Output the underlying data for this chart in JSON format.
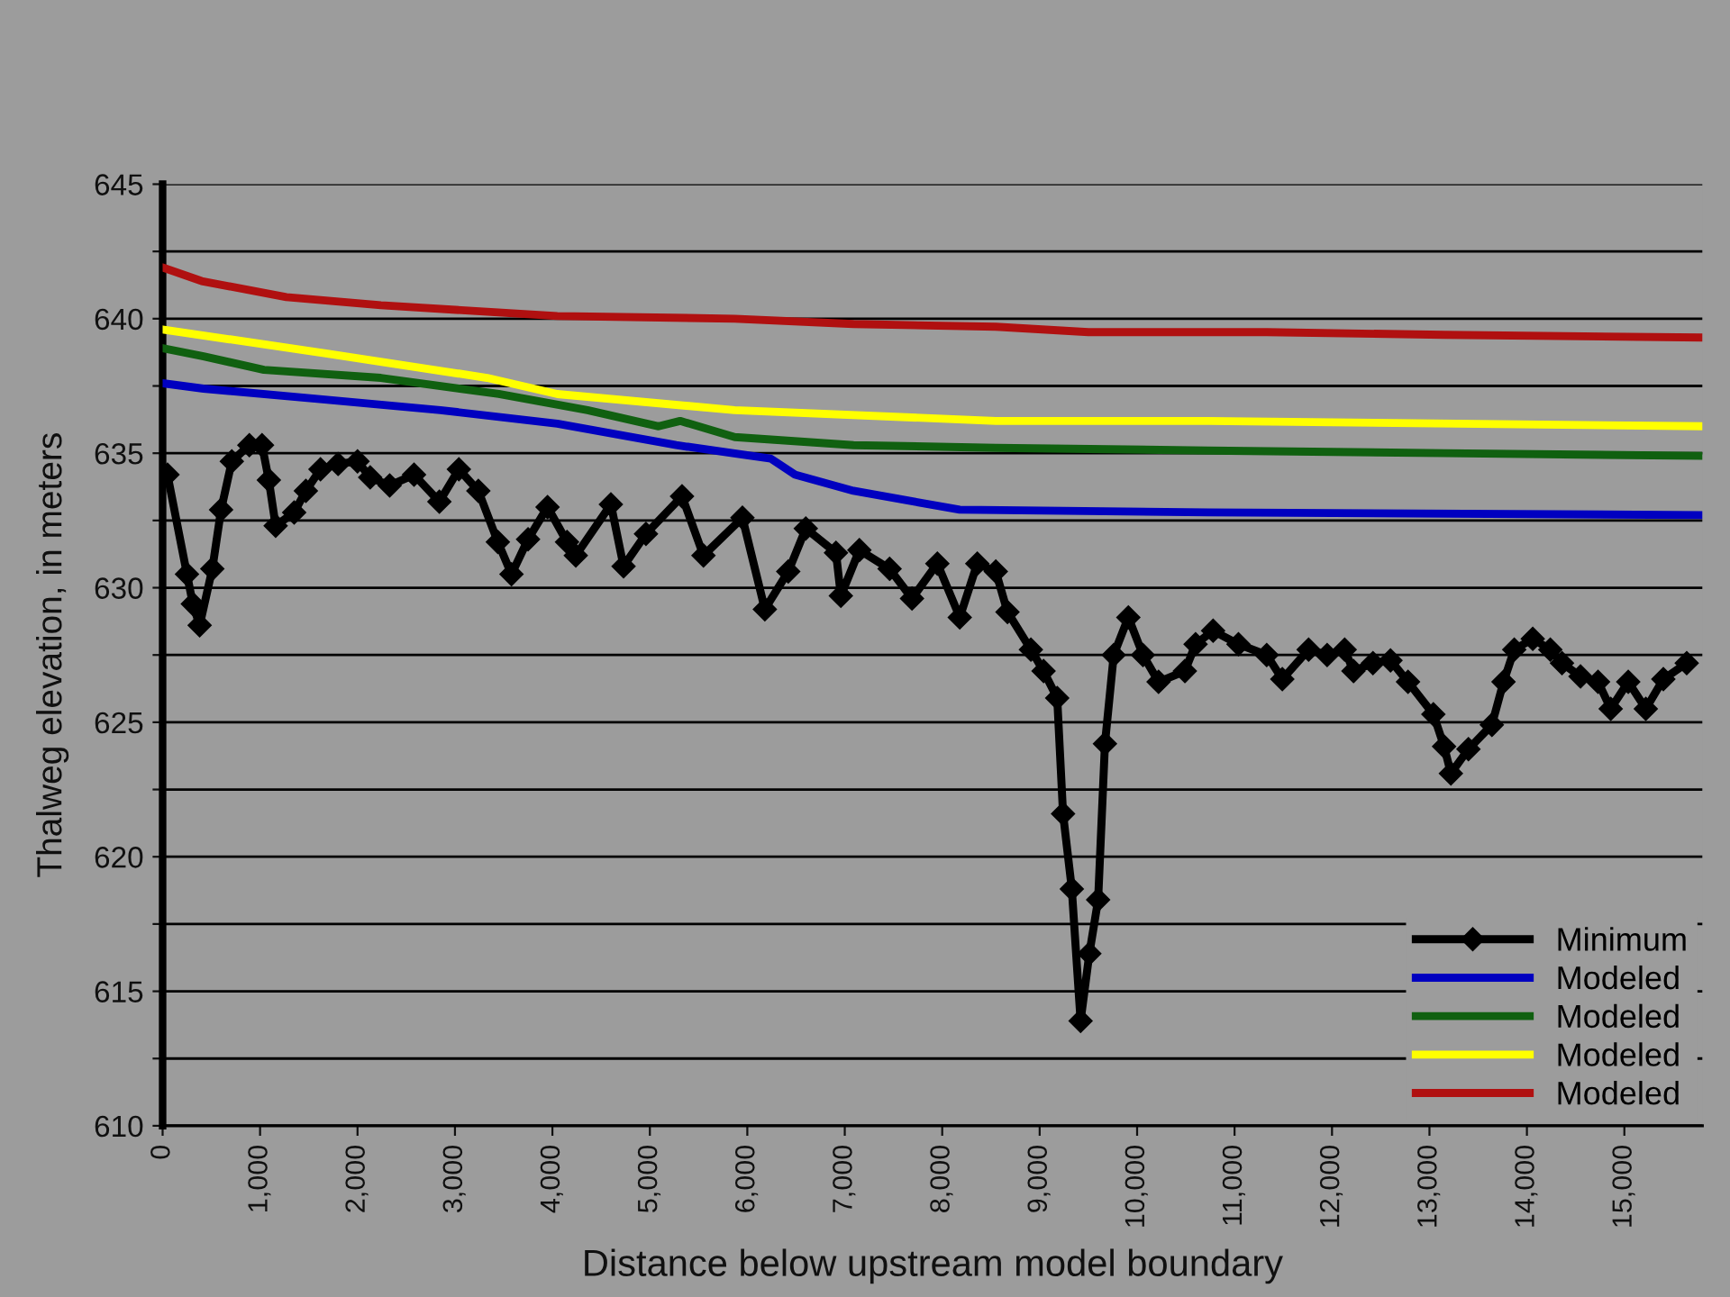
{
  "chart_data": {
    "type": "line",
    "xlabel": "Distance below upstream model boundary",
    "ylabel": "Thalweg elevation, in meters",
    "xlim": [
      0,
      15800
    ],
    "ylim": [
      610,
      645
    ],
    "xticks": [
      0,
      {
        "value": 1000,
        "label": "1,000"
      },
      {
        "value": 2000,
        "label": "2,000"
      },
      {
        "value": 3000,
        "label": "3,000"
      },
      {
        "value": 4000,
        "label": "4,000"
      },
      {
        "value": 5000,
        "label": "5,000"
      },
      {
        "value": 6000,
        "label": "6,000"
      },
      {
        "value": 7000,
        "label": "7,000"
      },
      {
        "value": 8000,
        "label": "8,000"
      },
      {
        "value": 9000,
        "label": "9,000"
      },
      {
        "value": 10000,
        "label": "10,000"
      },
      {
        "value": 11000,
        "label": "11,000"
      },
      {
        "value": 12000,
        "label": "12,000"
      },
      {
        "value": 13000,
        "label": "13,000"
      },
      {
        "value": 14000,
        "label": "14,000"
      },
      {
        "value": 15000,
        "label": "15,000"
      }
    ],
    "yticks": [
      610,
      {
        "value": 612.5,
        "label": null
      },
      615,
      {
        "value": 617.5,
        "label": null
      },
      620,
      {
        "value": 622.5,
        "label": null
      },
      625,
      {
        "value": 627.5,
        "label": null
      },
      630,
      {
        "value": 632.5,
        "label": null
      },
      635,
      {
        "value": 637.5,
        "label": null
      },
      640,
      {
        "value": 642.5,
        "label": null
      },
      645
    ],
    "grid": "y",
    "legend": "bottom right",
    "series": [
      {
        "name": "Minimum",
        "color": "#000000",
        "marker": "diamond",
        "x": [
          50,
          250,
          310,
          380,
          510,
          600,
          710,
          890,
          1020,
          1090,
          1160,
          1350,
          1470,
          1620,
          1800,
          2000,
          2130,
          2330,
          2580,
          2840,
          3040,
          3240,
          3440,
          3580,
          3750,
          3950,
          4150,
          4240,
          4600,
          4730,
          4960,
          5330,
          5550,
          5950,
          6180,
          6420,
          6600,
          6910,
          6960,
          7150,
          7460,
          7690,
          7950,
          8180,
          8360,
          8550,
          8670,
          8910,
          9040,
          9180,
          9240,
          9330,
          9420,
          9510,
          9600,
          9670,
          9760,
          9910,
          10060,
          10220,
          10490,
          10600,
          10780,
          11040,
          11330,
          11490,
          11760,
          11950,
          12130,
          12220,
          12420,
          12600,
          12780,
          13040,
          13150,
          13220,
          13400,
          13640,
          13760,
          13870,
          14060,
          14240,
          14360,
          14550,
          14730,
          14860,
          15040,
          15220,
          15400,
          15640
        ],
        "values": [
          634.2,
          630.5,
          629.4,
          628.6,
          630.7,
          632.9,
          634.7,
          635.3,
          635.3,
          634.0,
          632.3,
          632.8,
          633.6,
          634.4,
          634.6,
          634.7,
          634.1,
          633.8,
          634.2,
          633.2,
          634.4,
          633.6,
          631.7,
          630.5,
          631.8,
          633.0,
          631.7,
          631.2,
          633.1,
          630.8,
          632.0,
          633.4,
          631.2,
          632.6,
          629.2,
          630.6,
          632.2,
          631.3,
          629.7,
          631.4,
          630.7,
          629.6,
          630.9,
          628.9,
          630.9,
          630.6,
          629.1,
          627.7,
          626.9,
          625.9,
          621.6,
          618.8,
          613.9,
          616.4,
          618.4,
          624.2,
          627.5,
          628.9,
          627.5,
          626.5,
          626.9,
          627.9,
          628.4,
          627.9,
          627.5,
          626.6,
          627.7,
          627.5,
          627.7,
          626.9,
          627.2,
          627.3,
          626.5,
          625.3,
          624.1,
          623.1,
          624.0,
          624.9,
          626.5,
          627.7,
          628.1,
          627.7,
          627.2,
          626.7,
          626.5,
          625.5,
          626.5,
          625.5,
          626.6,
          627.2
        ]
      },
      {
        "name": "Modeled",
        "color": "#0000c0",
        "x": [
          0,
          420,
          1640,
          2850,
          4050,
          5270,
          6240,
          6490,
          7090,
          8180,
          10730,
          15800
        ],
        "values": [
          637.6,
          637.4,
          637.0,
          636.6,
          636.1,
          635.3,
          634.8,
          634.2,
          633.6,
          632.9,
          632.8,
          632.7
        ]
      },
      {
        "name": "Modeled",
        "color": "#106010",
        "x": [
          0,
          420,
          1040,
          2240,
          3450,
          4360,
          5090,
          5310,
          5870,
          7090,
          8550,
          10730,
          13150,
          15800
        ],
        "values": [
          638.9,
          638.6,
          638.1,
          637.8,
          637.2,
          636.6,
          636.0,
          636.2,
          635.6,
          635.3,
          635.2,
          635.1,
          635.0,
          634.9
        ]
      },
      {
        "name": "Modeled",
        "color": "#ffff00",
        "x": [
          0,
          1690,
          3330,
          4050,
          5870,
          8550,
          10730,
          15800
        ],
        "values": [
          639.6,
          638.7,
          637.8,
          637.2,
          636.6,
          636.2,
          636.2,
          636.0
        ]
      },
      {
        "name": "Modeled",
        "color": "#b01010",
        "x": [
          0,
          400,
          1270,
          2240,
          4050,
          5870,
          7090,
          8550,
          9500,
          11330,
          13150,
          15800
        ],
        "values": [
          641.9,
          641.4,
          640.8,
          640.5,
          640.1,
          640.0,
          639.8,
          639.7,
          639.5,
          639.5,
          639.4,
          639.3
        ]
      }
    ]
  }
}
